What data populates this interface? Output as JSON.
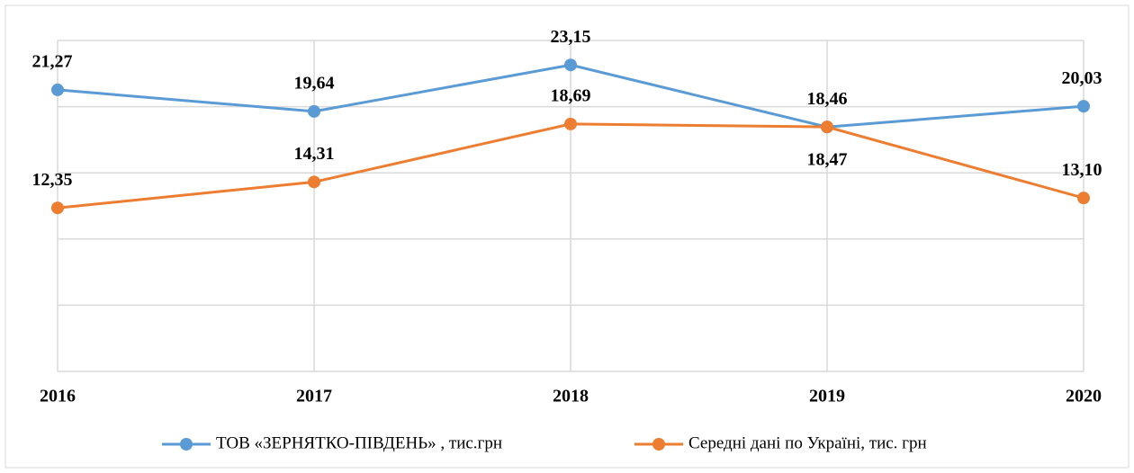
{
  "chart_data": {
    "type": "line",
    "categories": [
      "2016",
      "2017",
      "2018",
      "2019",
      "2020"
    ],
    "series": [
      {
        "name": "ТОВ «ЗЕРНЯТКО-ПІВДЕНЬ» , тис.грн",
        "color": "#5b9bd5",
        "values": [
          21.27,
          19.64,
          23.15,
          18.46,
          20.03
        ],
        "value_labels": [
          "21,27",
          "19,64",
          "23,15",
          "18,46",
          "20,03"
        ]
      },
      {
        "name": "Середні дані по Україні, тис. грн",
        "color": "#ed7d31",
        "values": [
          12.35,
          14.31,
          18.69,
          18.47,
          13.1
        ],
        "value_labels": [
          "12,35",
          "14,31",
          "18,69",
          "18,47",
          "13,10"
        ]
      }
    ],
    "ylim": [
      0,
      25
    ],
    "yticks": [
      0,
      5,
      10,
      15,
      20,
      25
    ],
    "grid": true,
    "legend": "bottom"
  }
}
